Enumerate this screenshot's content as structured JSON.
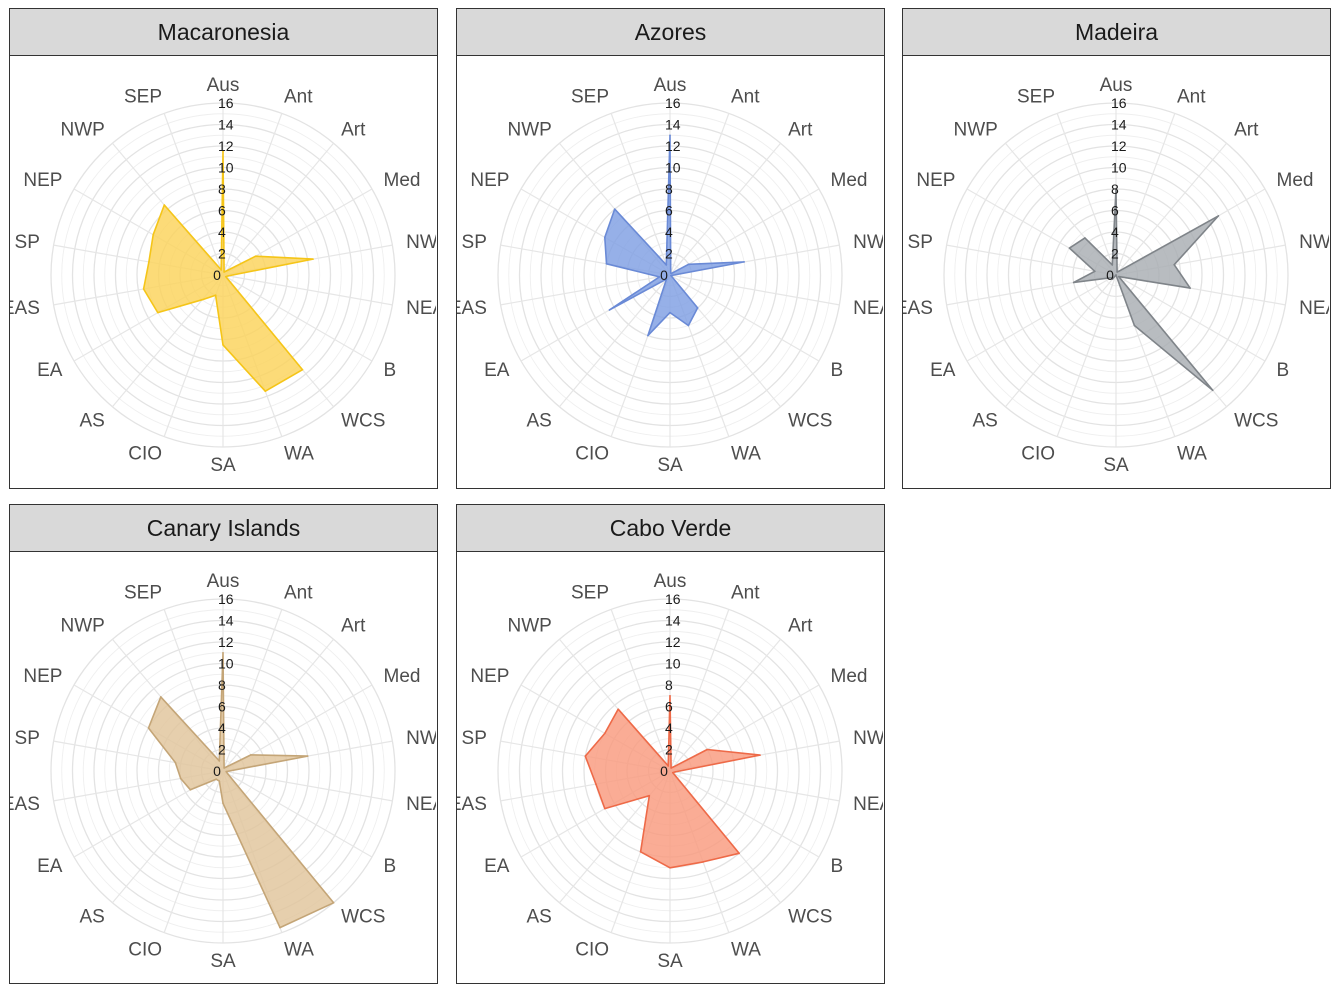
{
  "chart_data": [
    {
      "type": "radar",
      "title": "Macaronesia",
      "categories": [
        "Aus",
        "Ant",
        "Art",
        "Med",
        "NWA",
        "NEA",
        "B",
        "WCS",
        "WA",
        "SA",
        "CIO",
        "AS",
        "EA",
        "EAS",
        "SP",
        "NEP",
        "NWP",
        "SEP"
      ],
      "rticks": [
        "0",
        "2",
        "4",
        "6",
        "8",
        "10",
        "12",
        "14",
        "16"
      ],
      "rlim": [
        0,
        16
      ],
      "grid": true,
      "color": "#fbd35a",
      "edge": "#f5c518",
      "values": [
        11.5,
        0.3,
        0.5,
        3.5,
        8.5,
        0.5,
        0.3,
        11.5,
        11.5,
        6.5,
        2,
        3,
        7,
        7.5,
        7,
        7.5,
        8.5,
        0.5
      ]
    },
    {
      "type": "radar",
      "title": "Azores",
      "categories": [
        "Aus",
        "Ant",
        "Art",
        "Med",
        "NWA",
        "NEA",
        "B",
        "WCS",
        "WA",
        "SA",
        "CIO",
        "AS",
        "EA",
        "EAS",
        "SP",
        "NEP",
        "NWP",
        "SEP"
      ],
      "rticks": [
        "0",
        "2",
        "4",
        "6",
        "8",
        "10",
        "12",
        "14",
        "16"
      ],
      "rlim": [
        0,
        16
      ],
      "grid": true,
      "color": "#7f9fe3",
      "edge": "#6a8ad6",
      "values": [
        13,
        0.2,
        0.2,
        2,
        7,
        0.2,
        0.1,
        4,
        5,
        3.5,
        6,
        0.5,
        6.5,
        1,
        6,
        7,
        8,
        1
      ]
    },
    {
      "type": "radar",
      "title": "Madeira",
      "categories": [
        "Aus",
        "Ant",
        "Art",
        "Med",
        "NWA",
        "NEA",
        "B",
        "WCS",
        "WA",
        "SA",
        "CIO",
        "AS",
        "EA",
        "EAS",
        "SP",
        "NEP",
        "NWP",
        "SEP"
      ],
      "rticks": [
        "0",
        "2",
        "4",
        "6",
        "8",
        "10",
        "12",
        "14",
        "16"
      ],
      "rlim": [
        0,
        16
      ],
      "grid": true,
      "color": "#a8adb2",
      "edge": "#7f8489",
      "values": [
        8,
        0.3,
        0.5,
        11,
        5.5,
        7,
        0.3,
        14,
        5,
        0,
        0,
        0.5,
        0.5,
        4,
        2,
        5,
        4.5,
        1
      ]
    },
    {
      "type": "radar",
      "title": "Canary Islands",
      "categories": [
        "Aus",
        "Ant",
        "Art",
        "Med",
        "NWA",
        "NEA",
        "B",
        "WCS",
        "WA",
        "SA",
        "CIO",
        "AS",
        "EA",
        "EAS",
        "SP",
        "NEP",
        "NWP",
        "SEP"
      ],
      "rticks": [
        "0",
        "2",
        "4",
        "6",
        "8",
        "10",
        "12",
        "14",
        "16"
      ],
      "rlim": [
        0,
        16
      ],
      "grid": true,
      "color": "#e0c49b",
      "edge": "#c4a577",
      "values": [
        11,
        0.3,
        0.5,
        3,
        8,
        0.3,
        0.5,
        16,
        15.5,
        3,
        1,
        1,
        3.5,
        4,
        4.5,
        8,
        9,
        1
      ]
    },
    {
      "type": "radar",
      "title": "Cabo Verde",
      "categories": [
        "Aus",
        "Ant",
        "Art",
        "Med",
        "NWA",
        "NEA",
        "B",
        "WCS",
        "WA",
        "SA",
        "CIO",
        "AS",
        "EA",
        "EAS",
        "SP",
        "NEP",
        "NWP",
        "SEP"
      ],
      "rticks": [
        "0",
        "2",
        "4",
        "6",
        "8",
        "10",
        "12",
        "14",
        "16"
      ],
      "rlim": [
        0,
        16
      ],
      "grid": true,
      "color": "#f99a7e",
      "edge": "#ee6a48",
      "values": [
        7,
        0.3,
        0.5,
        4,
        8.5,
        0.5,
        0.3,
        10,
        9,
        9,
        8,
        3,
        7,
        7,
        8,
        7,
        7.5,
        0.5
      ]
    }
  ]
}
